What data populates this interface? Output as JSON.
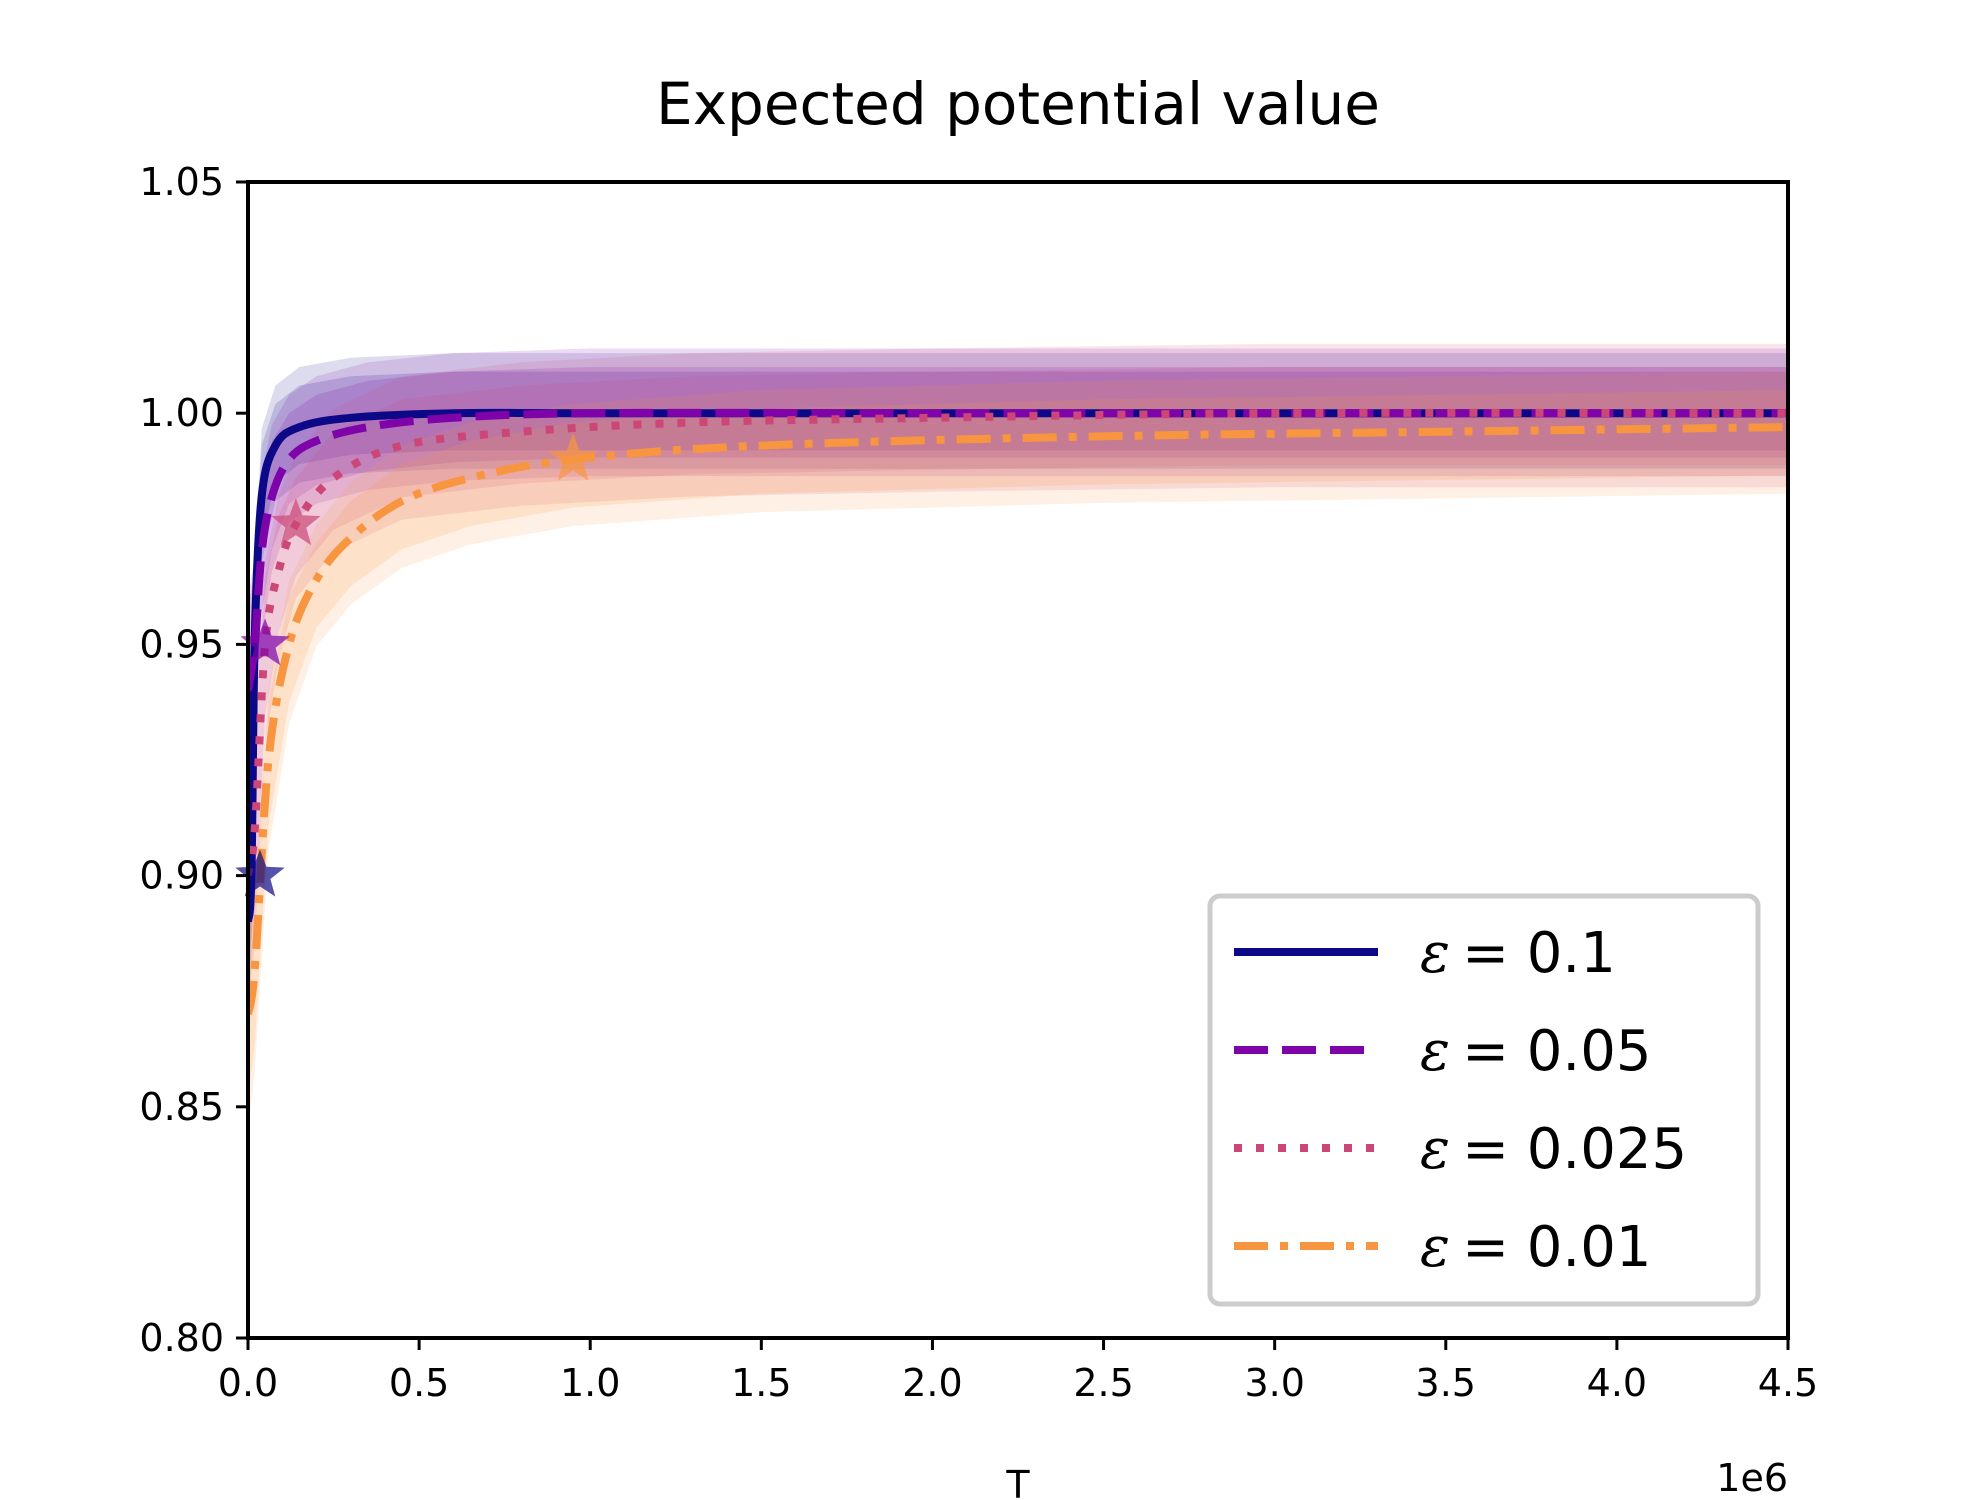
{
  "chart_data": {
    "type": "line",
    "title": "Expected potential value",
    "xlabel": "T",
    "x_offset_text": "1e6",
    "ylabel": "",
    "xlim": [
      0,
      4500000
    ],
    "ylim": [
      0.8,
      1.05
    ],
    "xticks": [
      0,
      500000,
      1000000,
      1500000,
      2000000,
      2500000,
      3000000,
      3500000,
      4000000,
      4500000
    ],
    "xtick_labels": [
      "0.0",
      "0.5",
      "1.0",
      "1.5",
      "2.0",
      "2.5",
      "3.0",
      "3.5",
      "4.0",
      "4.5"
    ],
    "yticks": [
      0.8,
      0.85,
      0.9,
      0.95,
      1.0,
      1.05
    ],
    "ytick_labels": [
      "0.80",
      "0.85",
      "0.90",
      "0.95",
      "1.00",
      "1.05"
    ],
    "grid": false,
    "legend_position": "lower-right",
    "series": [
      {
        "name": "ε = 0.1",
        "legend_eps": "ε",
        "legend_value": "= 0.1",
        "color": "#0d0887",
        "style": "solid",
        "x": [
          10000,
          20000,
          40000,
          80000,
          150000,
          300000,
          600000,
          1000000,
          2000000,
          3000000,
          4500000
        ],
        "y": [
          0.9,
          0.952,
          0.982,
          0.993,
          0.997,
          0.999,
          1.0,
          1.0,
          1.0,
          1.0,
          1.0
        ],
        "star": {
          "x": 35000,
          "y": 0.9
        },
        "band_inner": {
          "upper": 1.009,
          "lower": 0.99
        },
        "band_outer": {
          "upper": 1.013,
          "lower": 0.985
        }
      },
      {
        "name": "ε = 0.05",
        "legend_eps": "ε",
        "legend_value": "= 0.05",
        "color": "#7e03a8",
        "style": "dashed",
        "x": [
          20000,
          40000,
          70000,
          120000,
          200000,
          350000,
          600000,
          1000000,
          2000000,
          3000000,
          4500000
        ],
        "y": [
          0.95,
          0.97,
          0.982,
          0.99,
          0.994,
          0.997,
          0.999,
          1.0,
          1.0,
          1.0,
          1.0
        ],
        "star": {
          "x": 50000,
          "y": 0.95
        },
        "band_inner": {
          "upper": 1.01,
          "lower": 0.988
        },
        "band_outer": {
          "upper": 1.014,
          "lower": 0.983
        }
      },
      {
        "name": "ε = 0.025",
        "legend_eps": "ε",
        "legend_value": "= 0.025",
        "color": "#cc4778",
        "style": "dotted",
        "x": [
          20000,
          50000,
          90000,
          140000,
          250000,
          450000,
          800000,
          1300000,
          2000000,
          3000000,
          4500000
        ],
        "y": [
          0.91,
          0.95,
          0.966,
          0.976,
          0.986,
          0.993,
          0.996,
          0.998,
          0.999,
          1.0,
          1.0
        ],
        "star": {
          "x": 140000,
          "y": 0.976
        },
        "band_inner": {
          "upper": 1.01,
          "lower": 0.986
        },
        "band_outer": {
          "upper": 1.015,
          "lower": 0.98
        }
      },
      {
        "name": "ε = 0.01",
        "legend_eps": "ε",
        "legend_value": "= 0.01",
        "color": "#f89540",
        "style": "dashdot",
        "x": [
          20000,
          60000,
          120000,
          200000,
          300000,
          450000,
          650000,
          950000,
          1500000,
          2500000,
          3500000,
          4500000
        ],
        "y": [
          0.88,
          0.925,
          0.95,
          0.964,
          0.973,
          0.981,
          0.986,
          0.99,
          0.993,
          0.995,
          0.996,
          0.997
        ],
        "star": {
          "x": 950000,
          "y": 0.99
        },
        "band_inner": {
          "upper": 1.008,
          "lower": 0.987
        },
        "band_outer": {
          "upper": 1.012,
          "lower": 0.982
        }
      }
    ]
  }
}
